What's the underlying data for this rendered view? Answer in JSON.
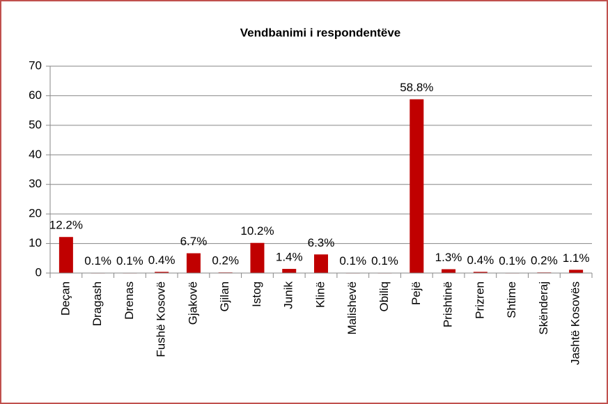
{
  "chart_data": {
    "type": "bar",
    "title": "Vendbanimi i respondentëve",
    "categories": [
      "Deçan",
      "Dragash",
      "Drenas",
      "Fushë Kosovë",
      "Gjakovë",
      "Gjilan",
      "Istog",
      "Junik",
      "Klinë",
      "Malishevë",
      "Obiliq",
      "Pejë",
      "Prishtinë",
      "Prizren",
      "Shtime",
      "Skënderaj",
      "Jashtë Kosovës"
    ],
    "values": [
      12.2,
      0.1,
      0.1,
      0.4,
      6.7,
      0.2,
      10.2,
      1.4,
      6.3,
      0.1,
      0.1,
      58.8,
      1.3,
      0.4,
      0.1,
      0.2,
      1.1
    ],
    "value_labels": [
      "12.2%",
      "0.1%",
      "0.1%",
      "0.4%",
      "6.7%",
      "0.2%",
      "10.2%",
      "1.4%",
      "6.3%",
      "0.1%",
      "0.1%",
      "58.8%",
      "1.3%",
      "0.4%",
      "0.1%",
      "0.2%",
      "1.1%"
    ],
    "color": "#c00000",
    "ylim": [
      0,
      70
    ],
    "yticks": [
      0,
      10,
      20,
      30,
      40,
      50,
      60,
      70
    ],
    "grid": true
  }
}
